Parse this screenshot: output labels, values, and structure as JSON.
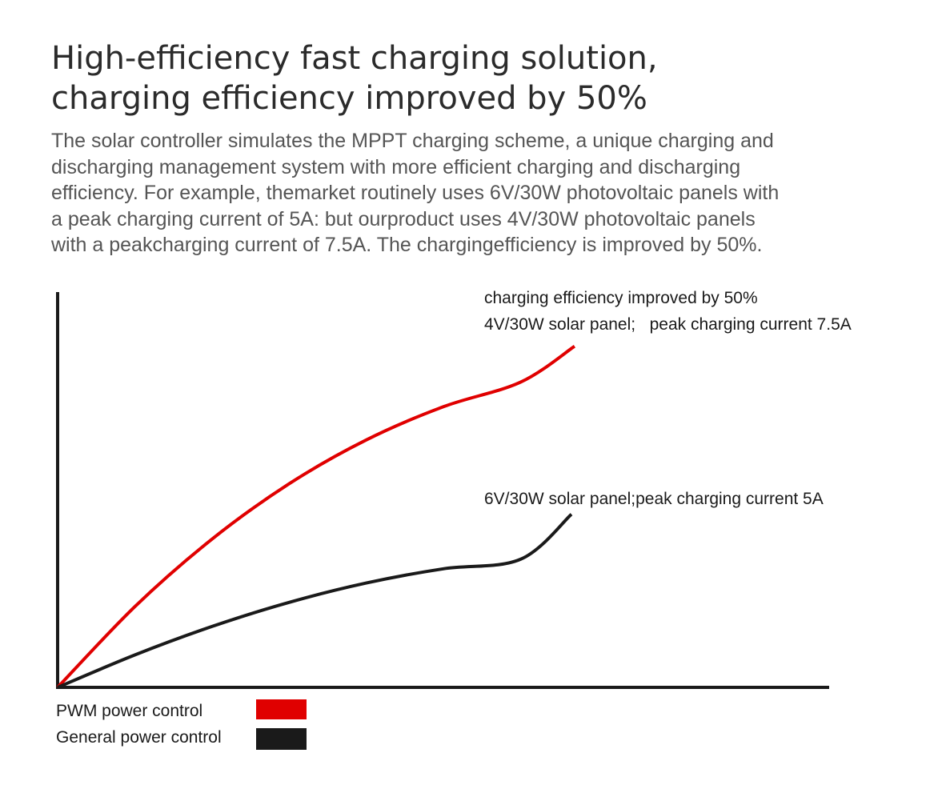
{
  "heading": {
    "line1": "High-efficiency fast charging solution,",
    "line2": "charging efficiency improved by 50%"
  },
  "description": {
    "lines": [
      "The solar controller simulates the MPPT charging scheme, a unique charging and",
      "discharging management system with more efficient charging and discharging",
      "efficiency.  For example, themarket routinely uses 6V/30W photovoltaic panels with",
      "a peak  charging current of 5A: but ourproduct uses 4V/30W photovoltaic  panels",
      "with a peakcharging current of 7.5A. The chargingefficiency is improved by 50%."
    ]
  },
  "chart_data": {
    "type": "line",
    "title": "",
    "xlabel": "",
    "ylabel": "",
    "grid": false,
    "xlim": [
      0,
      100
    ],
    "ylim": [
      0,
      100
    ],
    "legend_placement": "bottom-left",
    "series": [
      {
        "name": "PWM power control",
        "color": "#e00000",
        "x": [
          0,
          10,
          20,
          30,
          40,
          50,
          60,
          67
        ],
        "values": [
          0,
          20.4,
          37.5,
          51.5,
          62.6,
          71.0,
          77.2,
          86.3
        ]
      },
      {
        "name": "General power control",
        "color": "#1a1a1a",
        "x": [
          0,
          10,
          20,
          30,
          40,
          50,
          60,
          66.6
        ],
        "values": [
          0,
          8.2,
          15.4,
          21.5,
          26.4,
          30.0,
          32.4,
          43.8
        ]
      }
    ],
    "annotations": {
      "red_line1": "charging efficiency improved by 50%",
      "red_line2": "4V/30W solar panel;   peak charging current 7.5A",
      "black_line1": "6V/30W solar panel;peak charging current 5A"
    }
  }
}
